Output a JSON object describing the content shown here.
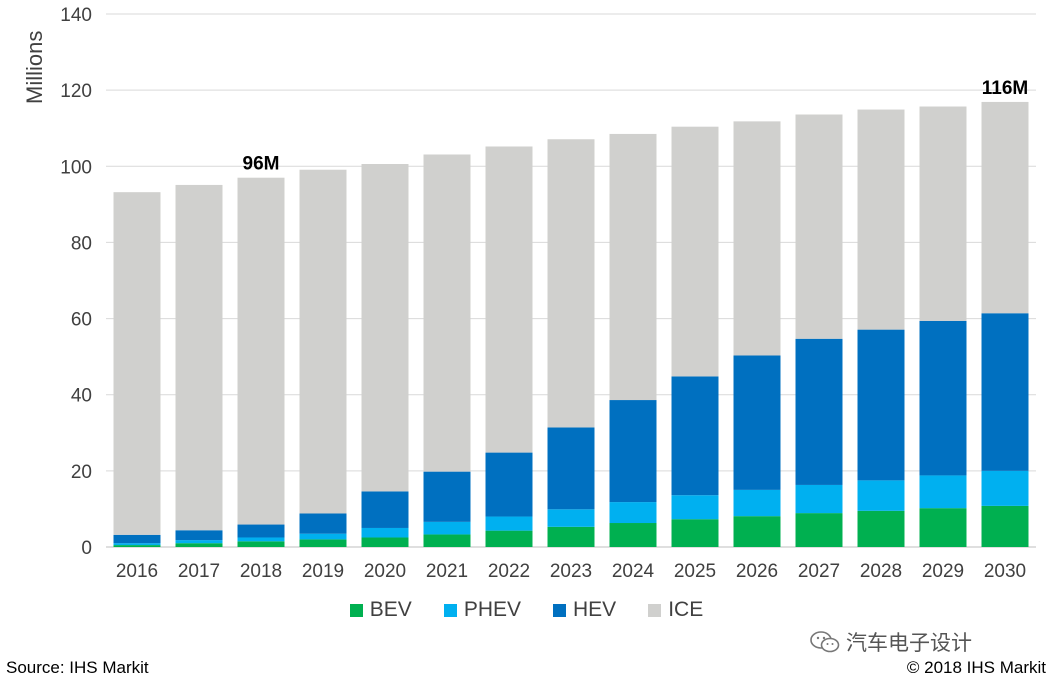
{
  "chart_data": {
    "type": "bar",
    "stacked": true,
    "categories": [
      "2016",
      "2017",
      "2018",
      "2019",
      "2020",
      "2021",
      "2022",
      "2023",
      "2024",
      "2025",
      "2026",
      "2027",
      "2028",
      "2029",
      "2030"
    ],
    "series": [
      {
        "name": "BEV",
        "color": "#00B050",
        "values": [
          0.5,
          1.0,
          1.5,
          2.0,
          2.5,
          3.3,
          4.3,
          5.3,
          6.3,
          7.3,
          8.1,
          8.9,
          9.5,
          10.2,
          10.8
        ]
      },
      {
        "name": "PHEV",
        "color": "#00B0F0",
        "values": [
          0.5,
          0.8,
          1.0,
          1.5,
          2.5,
          3.3,
          3.7,
          4.6,
          5.5,
          6.3,
          6.9,
          7.4,
          8.0,
          8.6,
          9.2
        ]
      },
      {
        "name": "HEV",
        "color": "#0070C0",
        "values": [
          2.2,
          2.6,
          3.4,
          5.3,
          9.6,
          13.2,
          16.8,
          21.5,
          26.8,
          31.2,
          35.3,
          38.4,
          39.6,
          40.6,
          41.4
        ]
      },
      {
        "name": "ICE",
        "color": "#D0D0CE",
        "values": [
          90.0,
          90.7,
          91.1,
          90.3,
          86.0,
          83.3,
          80.4,
          75.7,
          69.9,
          65.6,
          61.5,
          58.9,
          57.8,
          56.3,
          55.5
        ]
      }
    ],
    "ylabel": "Millions",
    "ylim": [
      0,
      140
    ],
    "yticks": [
      0,
      20,
      40,
      60,
      80,
      100,
      120,
      140
    ],
    "grid": true,
    "legend_position": "bottom",
    "annotations": [
      {
        "category": "2018",
        "text": "96M"
      },
      {
        "category": "2030",
        "text": "116M"
      }
    ]
  },
  "footer": {
    "source": "Source: IHS Markit",
    "copyright": "© 2018 IHS Markit"
  },
  "watermark": {
    "text": "汽车电子设计",
    "icon": "wechat-icon"
  }
}
